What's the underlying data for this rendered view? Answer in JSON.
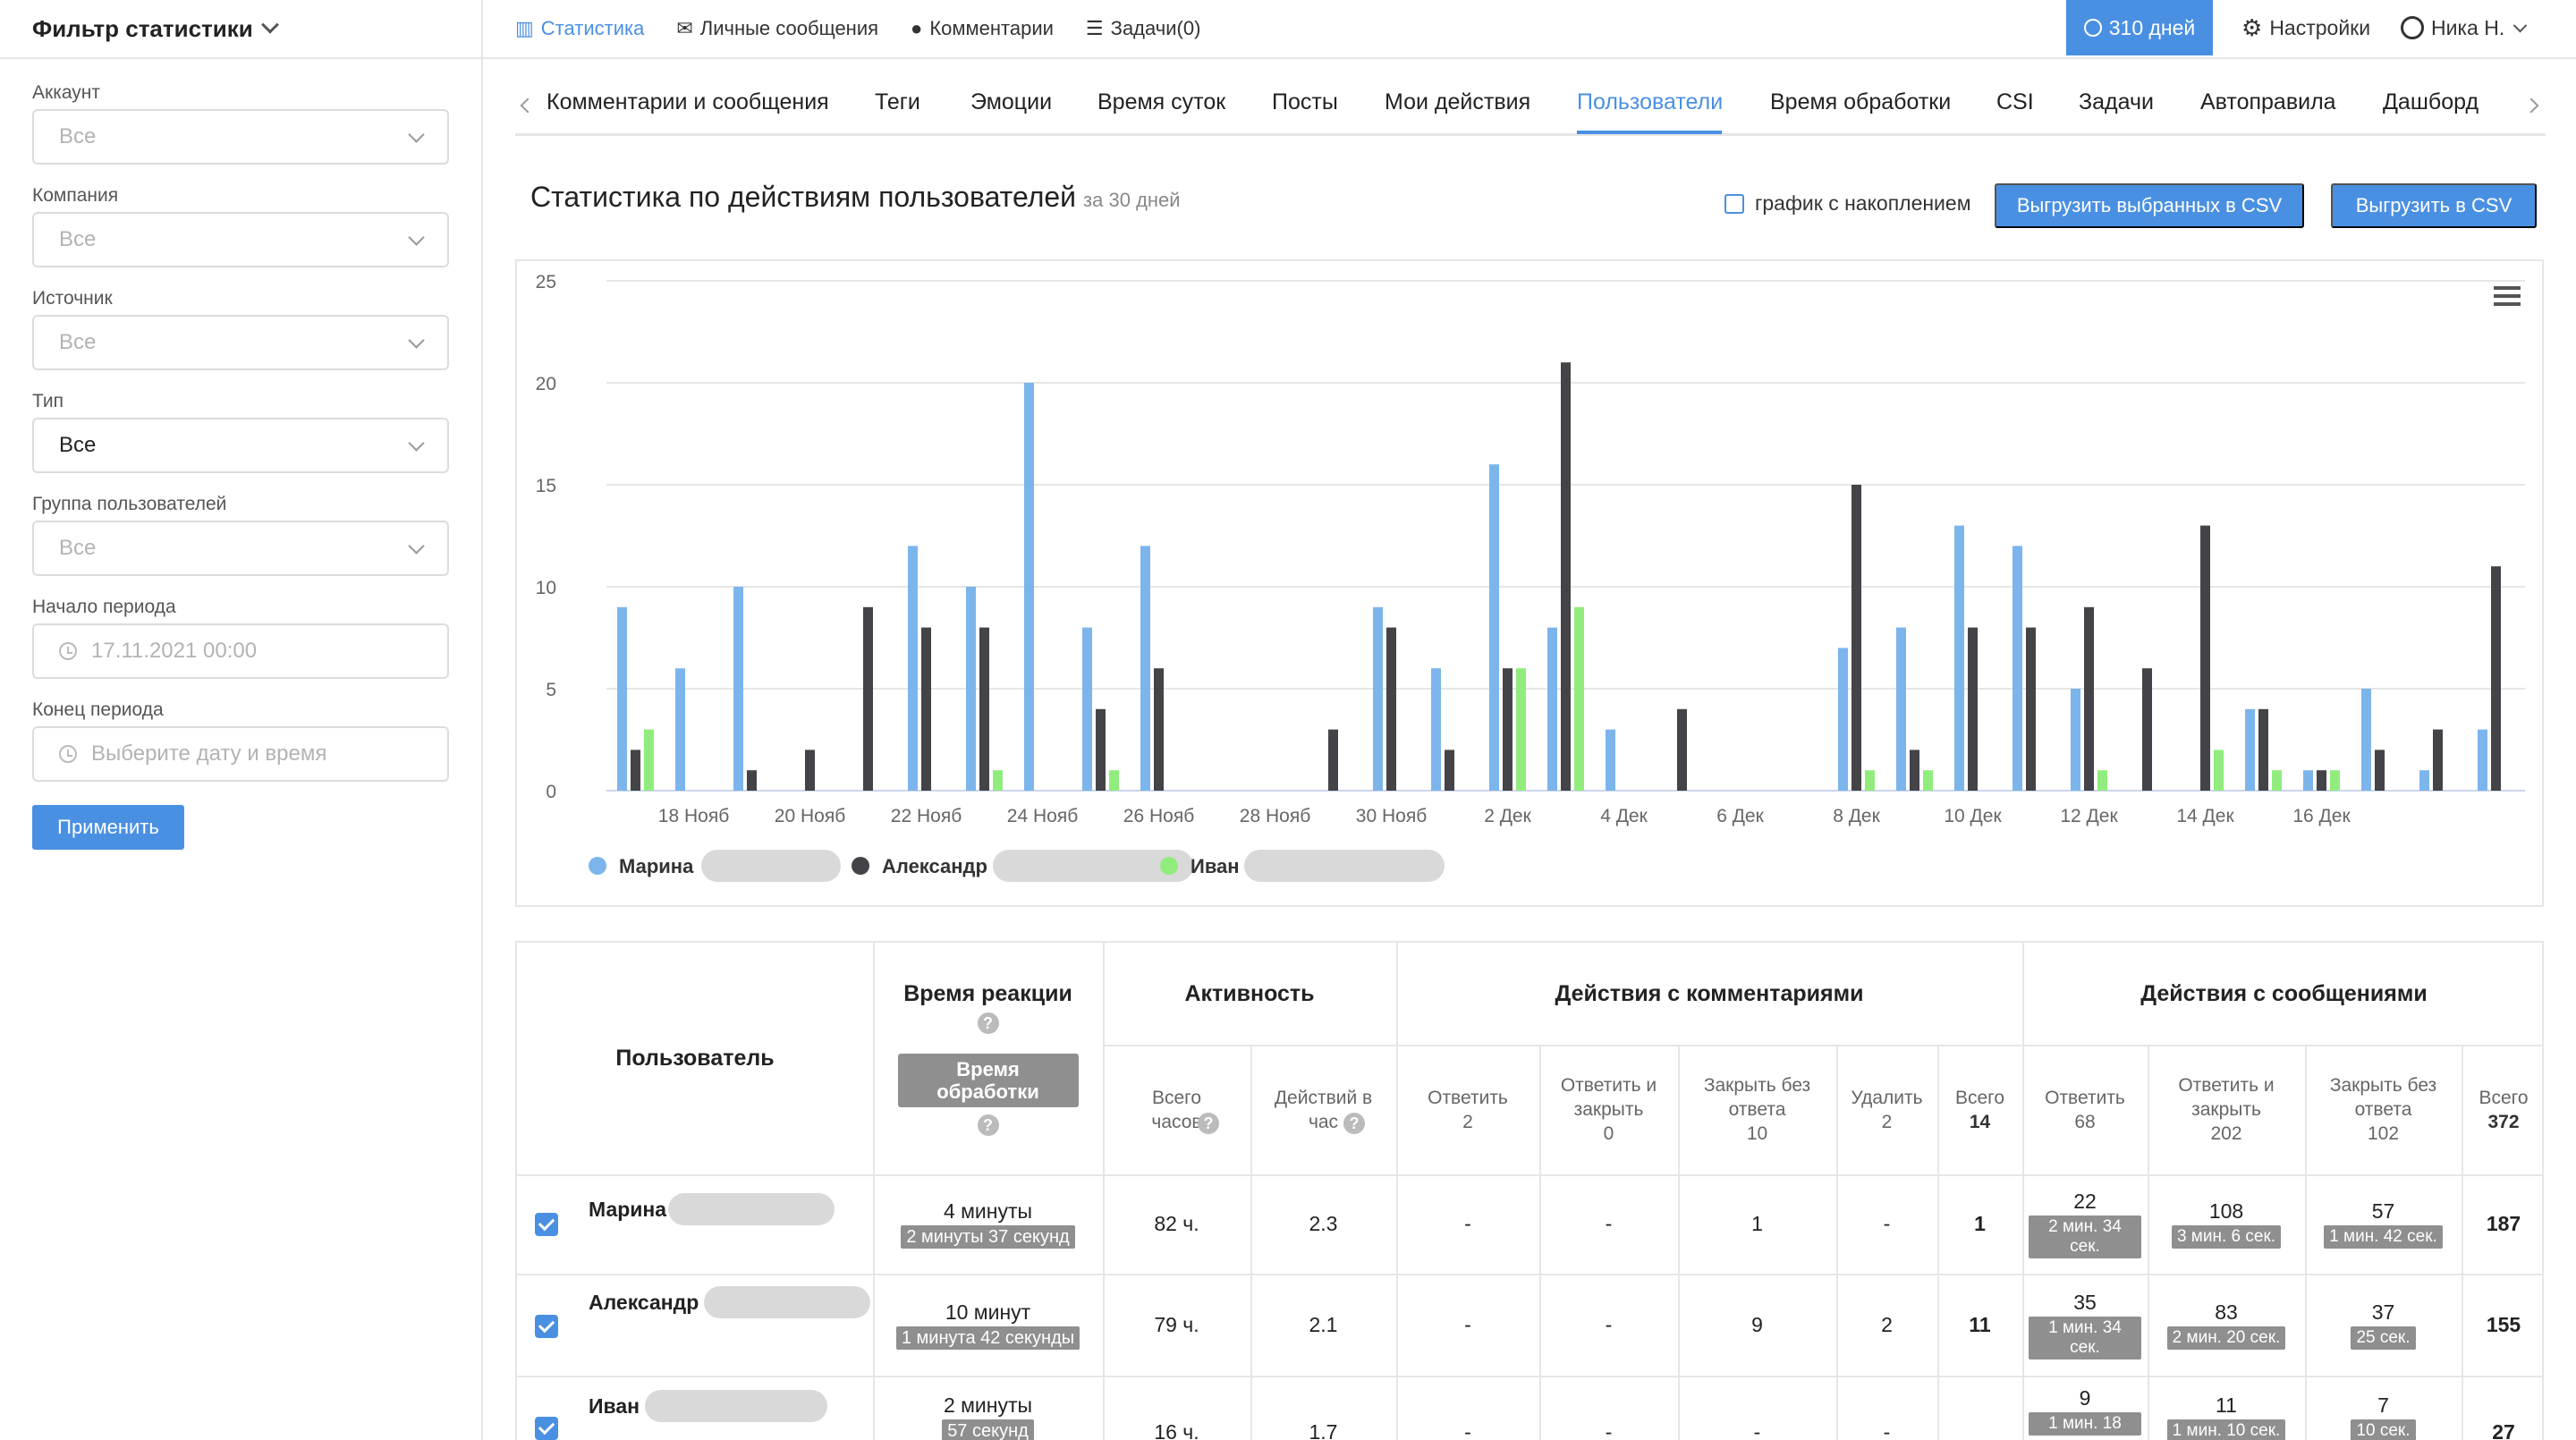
{
  "sidebar": {
    "title": "Фильтр статистики",
    "fields": [
      {
        "label": "Аккаунт",
        "value": "Все",
        "type": "select",
        "active": false
      },
      {
        "label": "Компания",
        "value": "Все",
        "type": "select",
        "active": false
      },
      {
        "label": "Источник",
        "value": "Все",
        "type": "select",
        "active": false
      },
      {
        "label": "Тип",
        "value": "Все",
        "type": "select",
        "active": true
      },
      {
        "label": "Группа пользователей",
        "value": "Все",
        "type": "select",
        "active": false
      },
      {
        "label": "Начало периода",
        "value": "17.11.2021 00:00",
        "type": "date",
        "active": false
      },
      {
        "label": "Конец периода",
        "placeholder": "Выберите дату и время",
        "type": "date",
        "active": false
      }
    ],
    "apply_label": "Применить"
  },
  "topnav": {
    "items": [
      {
        "label": "Статистика",
        "icon": "bar-chart-icon"
      },
      {
        "label": "Личные сообщения",
        "icon": "envelope-icon"
      },
      {
        "label": "Комментарии",
        "icon": "comment-icon"
      },
      {
        "label": "Задачи(0)",
        "icon": "list-icon"
      }
    ],
    "days_label": "310 дней",
    "settings_label": "Настройки",
    "user_label": "Ника Н."
  },
  "tabs": [
    "Комментарии и сообщения",
    "Теги",
    "Эмоции",
    "Время суток",
    "Посты",
    "Мои действия",
    "Пользователи",
    "Время обработки",
    "CSI",
    "Задачи",
    "Автоправила",
    "Дашборд"
  ],
  "active_tab": "Пользователи",
  "section": {
    "title": "Статистика по действиям пользователей",
    "subtitle": "за 30 дней",
    "cumulative_label": "график с накоплением",
    "export_selected_label": "Выгрузить выбранных в CSV",
    "export_label": "Выгрузить в CSV"
  },
  "chart_data": {
    "type": "bar",
    "ylim": [
      0,
      25
    ],
    "yticks": [
      "0",
      "5",
      "10",
      "15",
      "20",
      "25"
    ],
    "x_tick_labels": [
      "18 Нояб",
      "20 Нояб",
      "22 Нояб",
      "24 Нояб",
      "26 Нояб",
      "28 Нояб",
      "30 Нояб",
      "2 Дек",
      "4 Дек",
      "6 Дек",
      "8 Дек",
      "10 Дек",
      "12 Дек",
      "14 Дек",
      "16 Дек"
    ],
    "series": [
      {
        "name": "Марина",
        "color": "#7cb5ec",
        "values": [
          9,
          6,
          10,
          0,
          0,
          12,
          10,
          20,
          8,
          12,
          0,
          0,
          0,
          9,
          6,
          16,
          8,
          3,
          0,
          0,
          0,
          7,
          8,
          13,
          12,
          5,
          0,
          0,
          4,
          1,
          5,
          1,
          3
        ]
      },
      {
        "name": "Александр",
        "color": "#434348",
        "values": [
          2,
          0,
          1,
          2,
          9,
          8,
          8,
          0,
          4,
          6,
          0,
          0,
          3,
          8,
          2,
          6,
          21,
          0,
          4,
          0,
          0,
          15,
          2,
          8,
          8,
          9,
          6,
          13,
          4,
          1,
          2,
          3,
          11
        ]
      },
      {
        "name": "Иван",
        "color": "#90ed7d",
        "values": [
          3,
          0,
          0,
          0,
          0,
          0,
          1,
          0,
          1,
          0,
          0,
          0,
          0,
          0,
          0,
          6,
          9,
          0,
          0,
          0,
          0,
          1,
          1,
          0,
          0,
          1,
          0,
          2,
          1,
          1,
          0,
          0,
          0
        ]
      }
    ]
  },
  "table": {
    "user_header": "Пользователь",
    "reaction_header": "Время реакции",
    "processing_label": "Время обработки",
    "activity_header": "Активность",
    "comments_header": "Действия с комментариями",
    "messages_header": "Действия с сообщениями",
    "sub": {
      "hours": "Всего часов",
      "per_hour": "Действий в час",
      "c_reply": "Ответить",
      "c_reply_n": "2",
      "c_reply_close": "Ответить и закрыть",
      "c_reply_close_n": "0",
      "c_close": "Закрыть без ответа",
      "c_close_n": "10",
      "c_delete": "Удалить",
      "c_delete_n": "2",
      "c_total": "Всего",
      "c_total_n": "14",
      "m_reply": "Ответить",
      "m_reply_n": "68",
      "m_reply_close": "Ответить и закрыть",
      "m_reply_close_n": "202",
      "m_close": "Закрыть без ответа",
      "m_close_n": "102",
      "m_total": "Всего",
      "m_total_n": "372"
    },
    "rows": [
      {
        "name": "Марина",
        "reaction": "4 минуты",
        "reaction_detail": "2 минуты 37 секунд",
        "hours": "82 ч.",
        "per_hour": "2.3",
        "c_reply": "-",
        "c_reply_close": "-",
        "c_close": "1",
        "c_delete": "-",
        "c_total": "1",
        "m_reply": "22",
        "m_reply_t": "2 мин. 34 сек.",
        "m_reply_close": "108",
        "m_reply_close_t": "3 мин. 6 сек.",
        "m_close": "57",
        "m_close_t": "1 мин. 42 сек.",
        "m_total": "187"
      },
      {
        "name": "Александр",
        "reaction": "10 минут",
        "reaction_detail": "1 минута 42 секунды",
        "hours": "79 ч.",
        "per_hour": "2.1",
        "c_reply": "-",
        "c_reply_close": "-",
        "c_close": "9",
        "c_delete": "2",
        "c_total": "11",
        "m_reply": "35",
        "m_reply_t": "1 мин. 34 сек.",
        "m_reply_close": "83",
        "m_reply_close_t": "2 мин. 20 сек.",
        "m_close": "37",
        "m_close_t": "25 сек.",
        "m_total": "155"
      },
      {
        "name": "Иван",
        "reaction": "2 минуты",
        "reaction_detail": "57 секунд",
        "hours": "16 ч.",
        "per_hour": "1.7",
        "c_reply": "-",
        "c_reply_close": "-",
        "c_close": "-",
        "c_delete": "-",
        "c_total": "",
        "m_reply": "9",
        "m_reply_t": "1 мин. 18",
        "m_reply_close": "11",
        "m_reply_close_t": "1 мин. 10 сек.",
        "m_close": "7",
        "m_close_t": "10 сек.",
        "m_total": "27"
      }
    ]
  }
}
